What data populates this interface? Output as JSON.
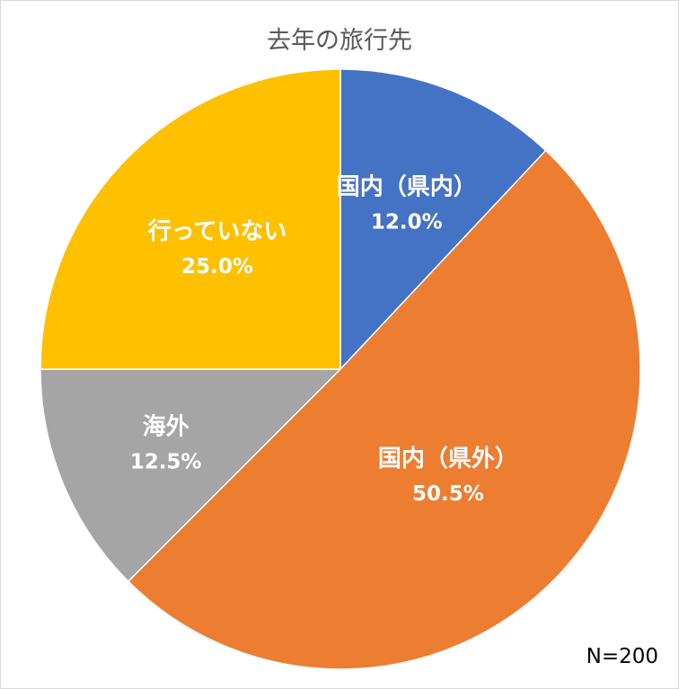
{
  "chart_data": {
    "type": "pie",
    "title": "去年の旅行先",
    "note": "N=200",
    "categories": [
      "国内（県内）",
      "国内（県外）",
      "海外",
      "行っていない"
    ],
    "values": [
      12.0,
      50.5,
      12.5,
      25.0
    ],
    "value_labels": [
      "12.0%",
      "50.5%",
      "12.5%",
      "25.0%"
    ],
    "colors": [
      "#4472C4",
      "#ED7D31",
      "#A5A5A5",
      "#FFC000"
    ],
    "start_angle_deg": 0,
    "direction": "clockwise",
    "data_labels": "inside",
    "legend": "none"
  }
}
